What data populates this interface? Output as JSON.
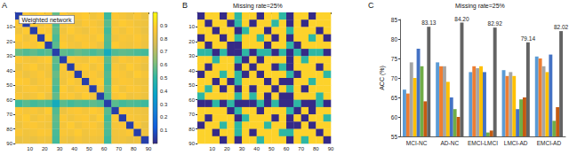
{
  "chart_data": [
    {
      "type": "heatmap",
      "panel": "A",
      "title": "Weighted network",
      "bins": [
        0,
        5,
        10,
        15,
        20,
        25,
        30,
        35,
        40,
        45,
        50,
        55,
        60,
        65,
        70,
        75,
        80,
        85,
        90
      ],
      "xlim": [
        0,
        90
      ],
      "xticks": [
        10,
        20,
        30,
        40,
        50,
        60,
        70,
        80,
        90
      ],
      "ylim": [
        0,
        90
      ],
      "yticks": [
        10,
        20,
        30,
        40,
        50,
        60,
        70,
        80,
        90
      ],
      "colorbar": {
        "lim": [
          0,
          1
        ],
        "ticks": [
          0.1,
          0.2,
          0.3,
          0.4,
          0.5,
          0.6,
          0.7,
          0.8,
          0.9
        ]
      },
      "cells": [
        [
          0.05,
          0.86,
          0.84,
          0.88,
          0.85,
          0.58,
          0.87,
          0.83,
          0.86,
          0.88,
          0.84,
          0.86,
          0.52,
          0.87,
          0.85,
          0.83,
          0.86,
          0.82
        ],
        [
          0.86,
          0.05,
          0.88,
          0.84,
          0.87,
          0.55,
          0.85,
          0.86,
          0.83,
          0.87,
          0.86,
          0.84,
          0.56,
          0.85,
          0.88,
          0.86,
          0.84,
          0.83
        ],
        [
          0.84,
          0.88,
          0.05,
          0.87,
          0.86,
          0.57,
          0.84,
          0.88,
          0.85,
          0.83,
          0.87,
          0.85,
          0.53,
          0.86,
          0.84,
          0.87,
          0.85,
          0.82
        ],
        [
          0.88,
          0.84,
          0.87,
          0.05,
          0.89,
          0.54,
          0.86,
          0.84,
          0.87,
          0.86,
          0.85,
          0.88,
          0.55,
          0.84,
          0.86,
          0.85,
          0.87,
          0.84
        ],
        [
          0.85,
          0.87,
          0.86,
          0.89,
          0.05,
          0.56,
          0.88,
          0.85,
          0.84,
          0.87,
          0.86,
          0.83,
          0.54,
          0.88,
          0.85,
          0.84,
          0.86,
          0.83
        ],
        [
          0.58,
          0.55,
          0.57,
          0.54,
          0.56,
          0.05,
          0.57,
          0.55,
          0.58,
          0.56,
          0.54,
          0.57,
          0.42,
          0.55,
          0.57,
          0.56,
          0.54,
          0.53
        ],
        [
          0.87,
          0.85,
          0.84,
          0.86,
          0.88,
          0.57,
          0.05,
          0.87,
          0.85,
          0.84,
          0.88,
          0.86,
          0.56,
          0.83,
          0.87,
          0.85,
          0.86,
          0.84
        ],
        [
          0.83,
          0.86,
          0.88,
          0.84,
          0.85,
          0.55,
          0.87,
          0.05,
          0.86,
          0.88,
          0.84,
          0.87,
          0.53,
          0.86,
          0.84,
          0.88,
          0.85,
          0.82
        ],
        [
          0.86,
          0.83,
          0.85,
          0.87,
          0.84,
          0.58,
          0.85,
          0.86,
          0.05,
          0.85,
          0.87,
          0.84,
          0.55,
          0.87,
          0.86,
          0.84,
          0.88,
          0.85
        ],
        [
          0.88,
          0.87,
          0.83,
          0.86,
          0.87,
          0.56,
          0.84,
          0.88,
          0.85,
          0.05,
          0.86,
          0.88,
          0.54,
          0.85,
          0.87,
          0.86,
          0.84,
          0.83
        ],
        [
          0.84,
          0.86,
          0.87,
          0.85,
          0.86,
          0.54,
          0.88,
          0.84,
          0.87,
          0.86,
          0.05,
          0.85,
          0.57,
          0.88,
          0.84,
          0.87,
          0.86,
          0.84
        ],
        [
          0.86,
          0.84,
          0.85,
          0.88,
          0.83,
          0.57,
          0.86,
          0.87,
          0.84,
          0.88,
          0.85,
          0.05,
          0.55,
          0.86,
          0.88,
          0.84,
          0.85,
          0.83
        ],
        [
          0.52,
          0.56,
          0.53,
          0.55,
          0.54,
          0.42,
          0.56,
          0.53,
          0.55,
          0.54,
          0.57,
          0.55,
          0.05,
          0.56,
          0.53,
          0.55,
          0.54,
          0.52
        ],
        [
          0.87,
          0.85,
          0.86,
          0.84,
          0.88,
          0.55,
          0.83,
          0.86,
          0.87,
          0.85,
          0.88,
          0.86,
          0.56,
          0.05,
          0.87,
          0.85,
          0.84,
          0.83
        ],
        [
          0.85,
          0.88,
          0.84,
          0.86,
          0.85,
          0.57,
          0.87,
          0.84,
          0.86,
          0.87,
          0.84,
          0.88,
          0.53,
          0.87,
          0.05,
          0.86,
          0.85,
          0.84
        ],
        [
          0.83,
          0.86,
          0.87,
          0.85,
          0.84,
          0.56,
          0.85,
          0.88,
          0.84,
          0.86,
          0.87,
          0.84,
          0.55,
          0.85,
          0.86,
          0.05,
          0.87,
          0.82
        ],
        [
          0.86,
          0.84,
          0.85,
          0.87,
          0.86,
          0.54,
          0.86,
          0.85,
          0.88,
          0.84,
          0.86,
          0.85,
          0.54,
          0.84,
          0.85,
          0.87,
          0.05,
          0.83
        ],
        [
          0.82,
          0.83,
          0.82,
          0.84,
          0.83,
          0.53,
          0.84,
          0.82,
          0.85,
          0.83,
          0.84,
          0.83,
          0.52,
          0.83,
          0.84,
          0.82,
          0.83,
          0.05
        ]
      ]
    },
    {
      "type": "heatmap",
      "panel": "B",
      "title": "Missing rate=25%",
      "bins": [
        0,
        5,
        10,
        15,
        20,
        25,
        30,
        35,
        40,
        45,
        50,
        55,
        60,
        65,
        70,
        75,
        80,
        85,
        90
      ],
      "xlim": [
        0,
        90
      ],
      "xticks": [
        10,
        20,
        30,
        40,
        50,
        60,
        70,
        80,
        90
      ],
      "ylim": [
        0,
        90
      ],
      "yticks": [
        10,
        20,
        30,
        40,
        50,
        60,
        70,
        80,
        90
      ],
      "cells": [
        [
          0,
          0.9,
          0.9,
          0,
          0.9,
          0.5,
          0.9,
          0.9,
          0,
          0.9,
          0.9,
          0.5,
          0,
          0.9,
          0.9,
          0,
          0.9,
          0.9
        ],
        [
          0.9,
          0,
          0.9,
          0.9,
          0,
          0.5,
          0.9,
          0,
          0.9,
          0.9,
          0.5,
          0.9,
          0,
          0.9,
          0,
          0.9,
          0.9,
          0.9
        ],
        [
          0.9,
          0.9,
          0,
          0.9,
          0.9,
          0,
          0.5,
          0.9,
          0.9,
          0,
          0.9,
          0.9,
          0.5,
          0.9,
          0.9,
          0.9,
          0,
          0.9
        ],
        [
          0,
          0.9,
          0.9,
          0,
          0.9,
          0.5,
          0.9,
          0.9,
          0.5,
          0.9,
          0,
          0.9,
          0,
          0.9,
          0.9,
          0.5,
          0.9,
          0
        ],
        [
          0.9,
          0,
          0.9,
          0.9,
          0,
          0,
          0.9,
          0.9,
          0.9,
          0,
          0.9,
          0.9,
          0.5,
          0,
          0.9,
          0.9,
          0.9,
          0.9
        ],
        [
          0.5,
          0.5,
          0,
          0.5,
          0,
          0,
          0.5,
          0,
          0.5,
          0.5,
          0,
          0.5,
          0,
          0.5,
          0,
          0.5,
          0.5,
          0
        ],
        [
          0.9,
          0.9,
          0.5,
          0.9,
          0.9,
          0.5,
          0,
          0.9,
          0,
          0.9,
          0.9,
          0.9,
          0,
          0.9,
          0.5,
          0.9,
          0.9,
          0.9
        ],
        [
          0.9,
          0,
          0.9,
          0.9,
          0.9,
          0,
          0.9,
          0,
          0.9,
          0.9,
          0,
          0.5,
          0,
          0.9,
          0.9,
          0.9,
          0,
          0.9
        ],
        [
          0,
          0.9,
          0.9,
          0.5,
          0.9,
          0.5,
          0,
          0.9,
          0,
          0.9,
          0.9,
          0.9,
          0.5,
          0,
          0.9,
          0.9,
          0.9,
          0.5
        ],
        [
          0.9,
          0.9,
          0,
          0.9,
          0,
          0.5,
          0.9,
          0.9,
          0.9,
          0,
          0.9,
          0,
          0,
          0.9,
          0.9,
          0.5,
          0.9,
          0.9
        ],
        [
          0.9,
          0.5,
          0.9,
          0,
          0.9,
          0,
          0.9,
          0,
          0.9,
          0.9,
          0,
          0.9,
          0.5,
          0.9,
          0,
          0.9,
          0.9,
          0.9
        ],
        [
          0.5,
          0.9,
          0.9,
          0.9,
          0.9,
          0.5,
          0.9,
          0.5,
          0.9,
          0,
          0.9,
          0,
          0,
          0.9,
          0.9,
          0.9,
          0.5,
          0.9
        ],
        [
          0,
          0,
          0.5,
          0,
          0.5,
          0,
          0,
          0,
          0.5,
          0,
          0.5,
          0,
          0,
          0.5,
          0,
          0,
          0.5,
          0
        ],
        [
          0.9,
          0.9,
          0.9,
          0.9,
          0,
          0.5,
          0.9,
          0.9,
          0,
          0.9,
          0.9,
          0.9,
          0.5,
          0,
          0.9,
          0,
          0.9,
          0.9
        ],
        [
          0.9,
          0,
          0.9,
          0.9,
          0.9,
          0,
          0.5,
          0.9,
          0.9,
          0.9,
          0,
          0.9,
          0,
          0.9,
          0,
          0.9,
          0.9,
          0.5
        ],
        [
          0,
          0.9,
          0.9,
          0.5,
          0.9,
          0.5,
          0.9,
          0.9,
          0.9,
          0.5,
          0.9,
          0.9,
          0,
          0,
          0.9,
          0,
          0.9,
          0.9
        ],
        [
          0.9,
          0.9,
          0,
          0.9,
          0.9,
          0.5,
          0.9,
          0,
          0.9,
          0.9,
          0.9,
          0.5,
          0.5,
          0.9,
          0.9,
          0.9,
          0,
          0.9
        ],
        [
          0.9,
          0.9,
          0.9,
          0,
          0.9,
          0,
          0.9,
          0.9,
          0.5,
          0.9,
          0.9,
          0.9,
          0,
          0.9,
          0.5,
          0.9,
          0.9,
          0
        ]
      ]
    },
    {
      "type": "bar",
      "panel": "C",
      "title": "Missing rate=25%",
      "categories": [
        "MCI-NC",
        "AD-NC",
        "EMCI-LMCI",
        "LMCI-AD",
        "EMCI-AD"
      ],
      "y_label": "ACC (%)",
      "ylim": [
        55,
        85
      ],
      "yticks": [
        55,
        60,
        65,
        70,
        75,
        80,
        85
      ],
      "grid": false,
      "series": [
        {
          "color": "#5b9bd5",
          "values": [
            67,
            74,
            71.5,
            72,
            75.5
          ]
        },
        {
          "color": "#ed7d31",
          "values": [
            66,
            73,
            73,
            70.5,
            75
          ]
        },
        {
          "color": "#a5a5a5",
          "values": [
            74,
            73,
            72.5,
            71.5,
            73
          ]
        },
        {
          "color": "#ffc000",
          "values": [
            70,
            69,
            73,
            70.5,
            71.5
          ]
        },
        {
          "color": "#4472c4",
          "values": [
            77.5,
            65,
            71.5,
            62,
            76
          ]
        },
        {
          "color": "#70ad47",
          "values": [
            73,
            62,
            56,
            64.5,
            59
          ]
        },
        {
          "color": "#c55a11",
          "values": [
            64,
            60,
            56.5,
            65,
            62.5
          ]
        },
        {
          "color": "#636363",
          "values": [
            83.13,
            84.2,
            82.92,
            79.14,
            82.02
          ],
          "value_labels": [
            "83.13",
            "84.20",
            "82.92",
            "79.14",
            "82.02"
          ],
          "data_labels": true
        }
      ]
    }
  ]
}
